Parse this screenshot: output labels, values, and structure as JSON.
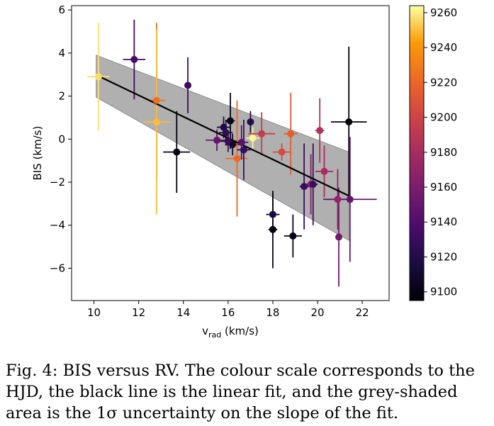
{
  "chart_data": {
    "type": "scatter",
    "xlabel_main": "v",
    "xlabel_sub": "rad",
    "xlabel_unit": " (km/s)",
    "ylabel": "BIS (km/s)",
    "xlim": [
      9,
      23.2
    ],
    "ylim": [
      -7.5,
      6.2
    ],
    "xticks": [
      10,
      12,
      14,
      16,
      18,
      20,
      22
    ],
    "yticks": [
      -6,
      -4,
      -2,
      0,
      2,
      4,
      6
    ],
    "colorbar": {
      "min": 9095,
      "max": 9264,
      "ticks": [
        9100,
        9120,
        9140,
        9160,
        9180,
        9200,
        9220,
        9240,
        9260
      ],
      "colormap": "inferno"
    },
    "fit": {
      "label": "linear fit",
      "slope": -0.497,
      "intercept": 8.0,
      "x_range": [
        10.1,
        21.4
      ],
      "band_color": "#b0b0b0",
      "band_upper": [
        [
          10.1,
          3.9
        ],
        [
          21.4,
          -0.6
        ]
      ],
      "band_lower": [
        [
          10.1,
          1.95
        ],
        [
          21.4,
          -4.7
        ]
      ]
    },
    "points": [
      {
        "x": 10.2,
        "y": 2.9,
        "xerr": 0.5,
        "yerr": 2.5,
        "hjd": 9257
      },
      {
        "x": 11.8,
        "y": 3.7,
        "xerr": 0.5,
        "yerr": 1.85,
        "hjd": 9135
      },
      {
        "x": 12.8,
        "y": 1.8,
        "xerr": 0.4,
        "yerr": 3.6,
        "hjd": 9225
      },
      {
        "x": 12.8,
        "y": 0.8,
        "xerr": 0.6,
        "yerr": 4.3,
        "hjd": 9250
      },
      {
        "x": 13.7,
        "y": -0.6,
        "xerr": 0.6,
        "yerr": 1.9,
        "hjd": 9098
      },
      {
        "x": 14.2,
        "y": 2.5,
        "xerr": 0.1,
        "yerr": 1.3,
        "hjd": 9130
      },
      {
        "x": 15.5,
        "y": -0.05,
        "xerr": 0.5,
        "yerr": 0.5,
        "hjd": 9150
      },
      {
        "x": 15.8,
        "y": 0.55,
        "xerr": 0.3,
        "yerr": 0.5,
        "hjd": 9118
      },
      {
        "x": 15.9,
        "y": 0.3,
        "xerr": 0.3,
        "yerr": 0.6,
        "hjd": 9125
      },
      {
        "x": 16.0,
        "y": -0.1,
        "xerr": 0.4,
        "yerr": 0.5,
        "hjd": 9130
      },
      {
        "x": 16.1,
        "y": 0.85,
        "xerr": 0.2,
        "yerr": 1.3,
        "hjd": 9100
      },
      {
        "x": 16.2,
        "y": -0.25,
        "xerr": 0.3,
        "yerr": 0.5,
        "hjd": 9110
      },
      {
        "x": 16.4,
        "y": -0.9,
        "xerr": 0.5,
        "yerr": 2.7,
        "hjd": 9222
      },
      {
        "x": 16.6,
        "y": -0.15,
        "xerr": 0.3,
        "yerr": 0.8,
        "hjd": 9145
      },
      {
        "x": 16.7,
        "y": -0.5,
        "xerr": 0.3,
        "yerr": 1.4,
        "hjd": 9130
      },
      {
        "x": 17.0,
        "y": 0.8,
        "xerr": 0.1,
        "yerr": 0.5,
        "hjd": 9120
      },
      {
        "x": 17.1,
        "y": 0.05,
        "xerr": 0.3,
        "yerr": 0.5,
        "hjd": 9262
      },
      {
        "x": 17.5,
        "y": 0.25,
        "xerr": 0.6,
        "yerr": 1.0,
        "hjd": 9195
      },
      {
        "x": 18.0,
        "y": -3.5,
        "xerr": 0.3,
        "yerr": 1.0,
        "hjd": 9115
      },
      {
        "x": 18.0,
        "y": -4.2,
        "xerr": 0.2,
        "yerr": 1.8,
        "hjd": 9100
      },
      {
        "x": 18.4,
        "y": -0.6,
        "xerr": 0.4,
        "yerr": 0.4,
        "hjd": 9205
      },
      {
        "x": 18.8,
        "y": 0.25,
        "xerr": 0.3,
        "yerr": 1.9,
        "hjd": 9215
      },
      {
        "x": 18.9,
        "y": -4.5,
        "xerr": 0.4,
        "yerr": 1.0,
        "hjd": 9100
      },
      {
        "x": 19.4,
        "y": -2.2,
        "xerr": 0.2,
        "yerr": 2.0,
        "hjd": 9130
      },
      {
        "x": 19.7,
        "y": -2.1,
        "xerr": 0.3,
        "yerr": 1.4,
        "hjd": 9165
      },
      {
        "x": 19.8,
        "y": -2.1,
        "xerr": 0.2,
        "yerr": 1.9,
        "hjd": 9130
      },
      {
        "x": 20.1,
        "y": 0.4,
        "xerr": 0.2,
        "yerr": 1.5,
        "hjd": 9185
      },
      {
        "x": 20.3,
        "y": -1.5,
        "xerr": 0.4,
        "yerr": 1.2,
        "hjd": 9180
      },
      {
        "x": 20.9,
        "y": -2.8,
        "xerr": 0.6,
        "yerr": 1.4,
        "hjd": 9170
      },
      {
        "x": 20.95,
        "y": -4.55,
        "xerr": 0.1,
        "yerr": 2.3,
        "hjd": 9155
      },
      {
        "x": 21.4,
        "y": 0.8,
        "xerr": 0.8,
        "yerr": 3.5,
        "hjd": 9098
      },
      {
        "x": 21.45,
        "y": -2.8,
        "xerr": 1.2,
        "yerr": 2.9,
        "hjd": 9150
      }
    ]
  },
  "caption": "Fig. 4: BIS versus RV. The colour scale corresponds to the HJD, the black line is the linear fit, and the grey-shaded area is the 1σ uncertainty on the slope of the fit."
}
